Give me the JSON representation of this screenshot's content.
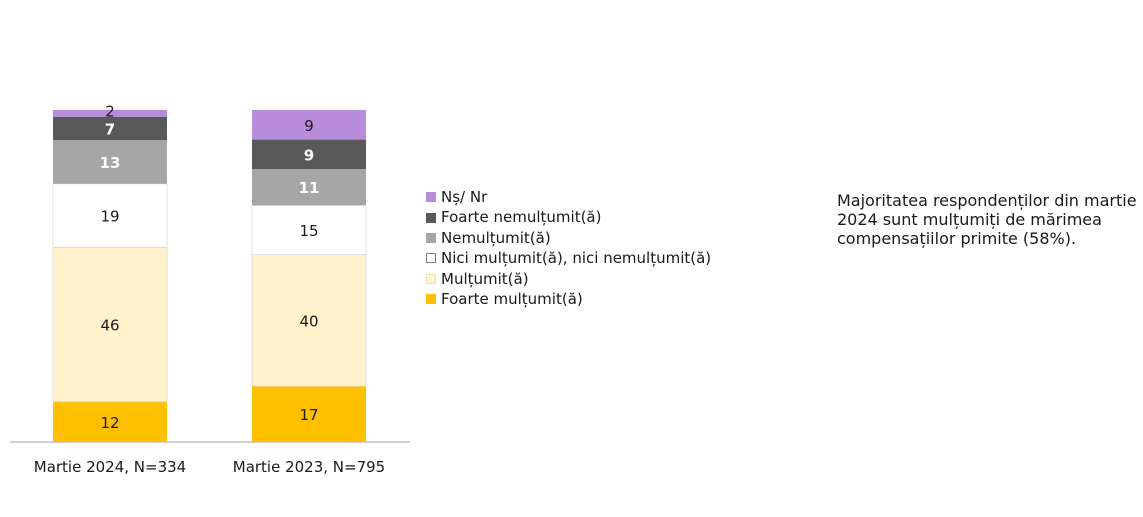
{
  "chart_data": {
    "type": "bar",
    "stacked": true,
    "categories": [
      "Martie 2024, N=334",
      "Martie 2023, N=795"
    ],
    "ylim": [
      0,
      100
    ],
    "grid": false,
    "legend_placement": "right",
    "series": [
      {
        "name": "Foarte mulțumit(ă)",
        "values": [
          12,
          17
        ],
        "color": "#FFC000",
        "label_color": "#1a1a1a",
        "label_bold": false
      },
      {
        "name": "Mulțumit(ă)",
        "values": [
          46,
          40
        ],
        "color": "#FFF2CC",
        "label_color": "#1a1a1a",
        "label_bold": false
      },
      {
        "name": "Nici mulțumit(ă), nici nemulțumit(ă)",
        "values": [
          19,
          15
        ],
        "color": "#FFFFFF",
        "label_color": "#1a1a1a",
        "label_bold": false
      },
      {
        "name": "Nemulțumit(ă)",
        "values": [
          13,
          11
        ],
        "color": "#A6A6A6",
        "label_color": "#FFFFFF",
        "label_bold": true
      },
      {
        "name": "Foarte nemulțumit(ă)",
        "values": [
          7,
          9
        ],
        "color": "#595959",
        "label_color": "#FFFFFF",
        "label_bold": true
      },
      {
        "name": "Nș/ Nr",
        "values": [
          2,
          9
        ],
        "color": "#B98BDB",
        "label_color": "#1a1a1a",
        "label_bold": false
      }
    ],
    "legend_order": [
      5,
      4,
      3,
      2,
      1,
      0
    ]
  },
  "note": {
    "text": "Majoritatea respondenților din martie 2024 sunt mulțumiți de mărimea compensațiilor primite (58%)."
  }
}
